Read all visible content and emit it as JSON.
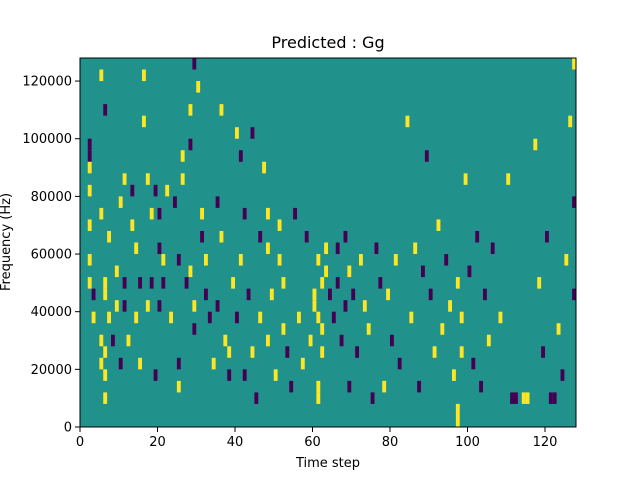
{
  "chart_data": {
    "type": "heatmap",
    "title": "Predicted : Gg",
    "xlabel": "Time step",
    "ylabel": "Frequency (Hz)",
    "xlim": [
      0,
      128
    ],
    "ylim": [
      0,
      128000
    ],
    "xticks": [
      0,
      20,
      40,
      60,
      80,
      100,
      120
    ],
    "xtick_labels": [
      "0",
      "20",
      "40",
      "60",
      "80",
      "100",
      "120"
    ],
    "yticks": [
      0,
      20000,
      40000,
      60000,
      80000,
      100000,
      120000
    ],
    "ytick_labels": [
      "0",
      "20000",
      "40000",
      "60000",
      "80000",
      "100000",
      "120000"
    ],
    "grid": false,
    "colormap": "viridis",
    "colors": {
      "background_value": "#21918c",
      "high_value": "#fde725",
      "low_value": "#440154"
    },
    "bin_height_hz": 4000,
    "cells": [
      {
        "t": 2,
        "f": 92000,
        "v": "low"
      },
      {
        "t": 2,
        "f": 96000,
        "v": "low"
      },
      {
        "t": 2,
        "f": 88000,
        "v": "high"
      },
      {
        "t": 2,
        "f": 80000,
        "v": "high"
      },
      {
        "t": 2,
        "f": 68000,
        "v": "high"
      },
      {
        "t": 2,
        "f": 56000,
        "v": "high"
      },
      {
        "t": 2,
        "f": 48000,
        "v": "high"
      },
      {
        "t": 3,
        "f": 36000,
        "v": "high"
      },
      {
        "t": 3,
        "f": 44000,
        "v": "low"
      },
      {
        "t": 5,
        "f": 120000,
        "v": "high"
      },
      {
        "t": 5,
        "f": 72000,
        "v": "high"
      },
      {
        "t": 5,
        "f": 28000,
        "v": "high"
      },
      {
        "t": 5,
        "f": 20000,
        "v": "high"
      },
      {
        "t": 6,
        "f": 108000,
        "v": "low"
      },
      {
        "t": 6,
        "f": 48000,
        "v": "high"
      },
      {
        "t": 6,
        "f": 44000,
        "v": "high"
      },
      {
        "t": 6,
        "f": 24000,
        "v": "high"
      },
      {
        "t": 6,
        "f": 16000,
        "v": "high"
      },
      {
        "t": 6,
        "f": 8000,
        "v": "high"
      },
      {
        "t": 7,
        "f": 36000,
        "v": "high"
      },
      {
        "t": 7,
        "f": 64000,
        "v": "high"
      },
      {
        "t": 8,
        "f": 28000,
        "v": "low"
      },
      {
        "t": 9,
        "f": 52000,
        "v": "high"
      },
      {
        "t": 9,
        "f": 40000,
        "v": "high"
      },
      {
        "t": 10,
        "f": 20000,
        "v": "low"
      },
      {
        "t": 10,
        "f": 76000,
        "v": "high"
      },
      {
        "t": 11,
        "f": 48000,
        "v": "low"
      },
      {
        "t": 11,
        "f": 40000,
        "v": "low"
      },
      {
        "t": 11,
        "f": 84000,
        "v": "high"
      },
      {
        "t": 12,
        "f": 28000,
        "v": "high"
      },
      {
        "t": 13,
        "f": 80000,
        "v": "low"
      },
      {
        "t": 13,
        "f": 68000,
        "v": "high"
      },
      {
        "t": 14,
        "f": 36000,
        "v": "high"
      },
      {
        "t": 14,
        "f": 60000,
        "v": "high"
      },
      {
        "t": 15,
        "f": 20000,
        "v": "high"
      },
      {
        "t": 15,
        "f": 48000,
        "v": "low"
      },
      {
        "t": 16,
        "f": 120000,
        "v": "high"
      },
      {
        "t": 16,
        "f": 104000,
        "v": "high"
      },
      {
        "t": 17,
        "f": 84000,
        "v": "high"
      },
      {
        "t": 17,
        "f": 40000,
        "v": "high"
      },
      {
        "t": 18,
        "f": 72000,
        "v": "high"
      },
      {
        "t": 18,
        "f": 48000,
        "v": "low"
      },
      {
        "t": 19,
        "f": 16000,
        "v": "low"
      },
      {
        "t": 19,
        "f": 80000,
        "v": "low"
      },
      {
        "t": 20,
        "f": 72000,
        "v": "low"
      },
      {
        "t": 20,
        "f": 60000,
        "v": "low"
      },
      {
        "t": 20,
        "f": 40000,
        "v": "low"
      },
      {
        "t": 21,
        "f": 56000,
        "v": "high"
      },
      {
        "t": 21,
        "f": 48000,
        "v": "low"
      },
      {
        "t": 22,
        "f": 80000,
        "v": "high"
      },
      {
        "t": 23,
        "f": 36000,
        "v": "high"
      },
      {
        "t": 24,
        "f": 76000,
        "v": "low"
      },
      {
        "t": 25,
        "f": 56000,
        "v": "low"
      },
      {
        "t": 25,
        "f": 12000,
        "v": "high"
      },
      {
        "t": 25,
        "f": 20000,
        "v": "low"
      },
      {
        "t": 26,
        "f": 92000,
        "v": "high"
      },
      {
        "t": 26,
        "f": 84000,
        "v": "high"
      },
      {
        "t": 27,
        "f": 48000,
        "v": "low"
      },
      {
        "t": 28,
        "f": 108000,
        "v": "high"
      },
      {
        "t": 28,
        "f": 96000,
        "v": "low"
      },
      {
        "t": 28,
        "f": 52000,
        "v": "high"
      },
      {
        "t": 29,
        "f": 32000,
        "v": "low"
      },
      {
        "t": 29,
        "f": 40000,
        "v": "high"
      },
      {
        "t": 29,
        "f": 124000,
        "v": "low"
      },
      {
        "t": 30,
        "f": 116000,
        "v": "high"
      },
      {
        "t": 31,
        "f": 72000,
        "v": "high"
      },
      {
        "t": 31,
        "f": 64000,
        "v": "low"
      },
      {
        "t": 32,
        "f": 56000,
        "v": "high"
      },
      {
        "t": 32,
        "f": 44000,
        "v": "low"
      },
      {
        "t": 33,
        "f": 36000,
        "v": "low"
      },
      {
        "t": 34,
        "f": 20000,
        "v": "high"
      },
      {
        "t": 35,
        "f": 76000,
        "v": "low"
      },
      {
        "t": 35,
        "f": 40000,
        "v": "low"
      },
      {
        "t": 36,
        "f": 108000,
        "v": "high"
      },
      {
        "t": 36,
        "f": 64000,
        "v": "high"
      },
      {
        "t": 37,
        "f": 28000,
        "v": "high"
      },
      {
        "t": 38,
        "f": 16000,
        "v": "low"
      },
      {
        "t": 38,
        "f": 24000,
        "v": "high"
      },
      {
        "t": 39,
        "f": 48000,
        "v": "high"
      },
      {
        "t": 40,
        "f": 100000,
        "v": "high"
      },
      {
        "t": 40,
        "f": 36000,
        "v": "low"
      },
      {
        "t": 41,
        "f": 56000,
        "v": "high"
      },
      {
        "t": 41,
        "f": 92000,
        "v": "low"
      },
      {
        "t": 42,
        "f": 72000,
        "v": "low"
      },
      {
        "t": 42,
        "f": 16000,
        "v": "low"
      },
      {
        "t": 43,
        "f": 44000,
        "v": "low"
      },
      {
        "t": 44,
        "f": 100000,
        "v": "low"
      },
      {
        "t": 44,
        "f": 24000,
        "v": "high"
      },
      {
        "t": 45,
        "f": 8000,
        "v": "low"
      },
      {
        "t": 46,
        "f": 64000,
        "v": "low"
      },
      {
        "t": 46,
        "f": 36000,
        "v": "high"
      },
      {
        "t": 47,
        "f": 88000,
        "v": "high"
      },
      {
        "t": 48,
        "f": 72000,
        "v": "high"
      },
      {
        "t": 48,
        "f": 60000,
        "v": "high"
      },
      {
        "t": 48,
        "f": 28000,
        "v": "high"
      },
      {
        "t": 49,
        "f": 44000,
        "v": "high"
      },
      {
        "t": 50,
        "f": 16000,
        "v": "high"
      },
      {
        "t": 51,
        "f": 68000,
        "v": "high"
      },
      {
        "t": 51,
        "f": 56000,
        "v": "high"
      },
      {
        "t": 52,
        "f": 48000,
        "v": "high"
      },
      {
        "t": 52,
        "f": 32000,
        "v": "high"
      },
      {
        "t": 53,
        "f": 24000,
        "v": "low"
      },
      {
        "t": 54,
        "f": 12000,
        "v": "low"
      },
      {
        "t": 55,
        "f": 72000,
        "v": "low"
      },
      {
        "t": 56,
        "f": 36000,
        "v": "high"
      },
      {
        "t": 57,
        "f": 20000,
        "v": "high"
      },
      {
        "t": 58,
        "f": 64000,
        "v": "low"
      },
      {
        "t": 59,
        "f": 28000,
        "v": "high"
      },
      {
        "t": 60,
        "f": 44000,
        "v": "high"
      },
      {
        "t": 60,
        "f": 40000,
        "v": "high"
      },
      {
        "t": 61,
        "f": 56000,
        "v": "high"
      },
      {
        "t": 61,
        "f": 36000,
        "v": "high"
      },
      {
        "t": 61,
        "f": 12000,
        "v": "high"
      },
      {
        "t": 61,
        "f": 8000,
        "v": "high"
      },
      {
        "t": 62,
        "f": 48000,
        "v": "high"
      },
      {
        "t": 62,
        "f": 32000,
        "v": "high"
      },
      {
        "t": 62,
        "f": 24000,
        "v": "high"
      },
      {
        "t": 63,
        "f": 60000,
        "v": "high"
      },
      {
        "t": 63,
        "f": 52000,
        "v": "high"
      },
      {
        "t": 64,
        "f": 44000,
        "v": "low"
      },
      {
        "t": 65,
        "f": 36000,
        "v": "low"
      },
      {
        "t": 66,
        "f": 60000,
        "v": "low"
      },
      {
        "t": 66,
        "f": 48000,
        "v": "low"
      },
      {
        "t": 67,
        "f": 28000,
        "v": "low"
      },
      {
        "t": 68,
        "f": 64000,
        "v": "low"
      },
      {
        "t": 68,
        "f": 40000,
        "v": "low"
      },
      {
        "t": 69,
        "f": 52000,
        "v": "high"
      },
      {
        "t": 69,
        "f": 12000,
        "v": "low"
      },
      {
        "t": 70,
        "f": 44000,
        "v": "low"
      },
      {
        "t": 71,
        "f": 24000,
        "v": "low"
      },
      {
        "t": 72,
        "f": 56000,
        "v": "high"
      },
      {
        "t": 73,
        "f": 40000,
        "v": "high"
      },
      {
        "t": 74,
        "f": 32000,
        "v": "high"
      },
      {
        "t": 75,
        "f": 8000,
        "v": "low"
      },
      {
        "t": 76,
        "f": 60000,
        "v": "low"
      },
      {
        "t": 77,
        "f": 48000,
        "v": "low"
      },
      {
        "t": 78,
        "f": 12000,
        "v": "high"
      },
      {
        "t": 79,
        "f": 44000,
        "v": "high"
      },
      {
        "t": 80,
        "f": 28000,
        "v": "low"
      },
      {
        "t": 81,
        "f": 56000,
        "v": "high"
      },
      {
        "t": 82,
        "f": 20000,
        "v": "low"
      },
      {
        "t": 84,
        "f": 104000,
        "v": "high"
      },
      {
        "t": 85,
        "f": 36000,
        "v": "high"
      },
      {
        "t": 86,
        "f": 60000,
        "v": "high"
      },
      {
        "t": 87,
        "f": 12000,
        "v": "low"
      },
      {
        "t": 88,
        "f": 52000,
        "v": "low"
      },
      {
        "t": 89,
        "f": 92000,
        "v": "low"
      },
      {
        "t": 90,
        "f": 44000,
        "v": "low"
      },
      {
        "t": 91,
        "f": 24000,
        "v": "high"
      },
      {
        "t": 92,
        "f": 68000,
        "v": "high"
      },
      {
        "t": 93,
        "f": 32000,
        "v": "high"
      },
      {
        "t": 94,
        "f": 56000,
        "v": "low"
      },
      {
        "t": 95,
        "f": 40000,
        "v": "high"
      },
      {
        "t": 96,
        "f": 16000,
        "v": "high"
      },
      {
        "t": 97,
        "f": 48000,
        "v": "high"
      },
      {
        "t": 97,
        "f": 4000,
        "v": "high"
      },
      {
        "t": 97,
        "f": 0,
        "v": "high"
      },
      {
        "t": 98,
        "f": 36000,
        "v": "high"
      },
      {
        "t": 98,
        "f": 24000,
        "v": "high"
      },
      {
        "t": 99,
        "f": 84000,
        "v": "high"
      },
      {
        "t": 100,
        "f": 52000,
        "v": "low"
      },
      {
        "t": 101,
        "f": 20000,
        "v": "low"
      },
      {
        "t": 102,
        "f": 64000,
        "v": "low"
      },
      {
        "t": 103,
        "f": 12000,
        "v": "low"
      },
      {
        "t": 104,
        "f": 44000,
        "v": "low"
      },
      {
        "t": 105,
        "f": 28000,
        "v": "high"
      },
      {
        "t": 106,
        "f": 60000,
        "v": "low"
      },
      {
        "t": 108,
        "f": 36000,
        "v": "high"
      },
      {
        "t": 110,
        "f": 84000,
        "v": "high"
      },
      {
        "t": 111,
        "f": 8000,
        "v": "low"
      },
      {
        "t": 112,
        "f": 8000,
        "v": "low"
      },
      {
        "t": 114,
        "f": 8000,
        "v": "high"
      },
      {
        "t": 115,
        "f": 8000,
        "v": "high"
      },
      {
        "t": 117,
        "f": 96000,
        "v": "high"
      },
      {
        "t": 118,
        "f": 48000,
        "v": "high"
      },
      {
        "t": 119,
        "f": 24000,
        "v": "low"
      },
      {
        "t": 120,
        "f": 64000,
        "v": "low"
      },
      {
        "t": 121,
        "f": 8000,
        "v": "low"
      },
      {
        "t": 122,
        "f": 8000,
        "v": "low"
      },
      {
        "t": 123,
        "f": 32000,
        "v": "high"
      },
      {
        "t": 124,
        "f": 16000,
        "v": "low"
      },
      {
        "t": 125,
        "f": 56000,
        "v": "high"
      },
      {
        "t": 126,
        "f": 104000,
        "v": "high"
      },
      {
        "t": 127,
        "f": 76000,
        "v": "low"
      },
      {
        "t": 127,
        "f": 44000,
        "v": "low"
      },
      {
        "t": 127,
        "f": 124000,
        "v": "high"
      }
    ]
  }
}
